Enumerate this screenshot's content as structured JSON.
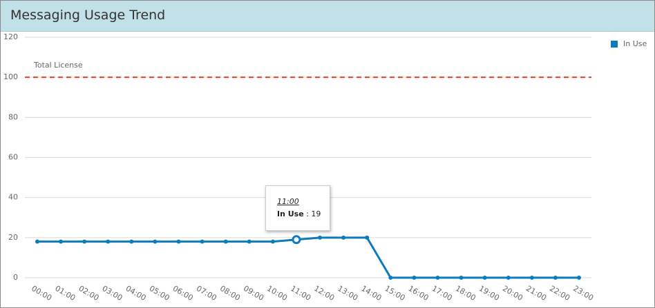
{
  "chart_data": {
    "type": "line",
    "title": "Messaging Usage Trend",
    "categories": [
      "00:00",
      "01:00",
      "02:00",
      "03:00",
      "04:00",
      "05:00",
      "06:00",
      "07:00",
      "08:00",
      "09:00",
      "10:00",
      "11:00",
      "12:00",
      "13:00",
      "14:00",
      "15:00",
      "16:00",
      "17:00",
      "18:00",
      "19:00",
      "20:00",
      "21:00",
      "22:00",
      "23:00"
    ],
    "series": [
      {
        "name": "In Use",
        "color": "#0a7bbd",
        "values": [
          18,
          18,
          18,
          18,
          18,
          18,
          18,
          18,
          18,
          18,
          18,
          19,
          20,
          20,
          20,
          0,
          0,
          0,
          0,
          0,
          0,
          0,
          0,
          0
        ]
      }
    ],
    "ylim": [
      0,
      120
    ],
    "yticks": [
      0,
      20,
      40,
      60,
      80,
      100,
      120
    ],
    "grid": true,
    "reference_line": {
      "label": "Total License",
      "value": 100,
      "color": "#e8401c"
    },
    "legend": "top-right"
  }
}
